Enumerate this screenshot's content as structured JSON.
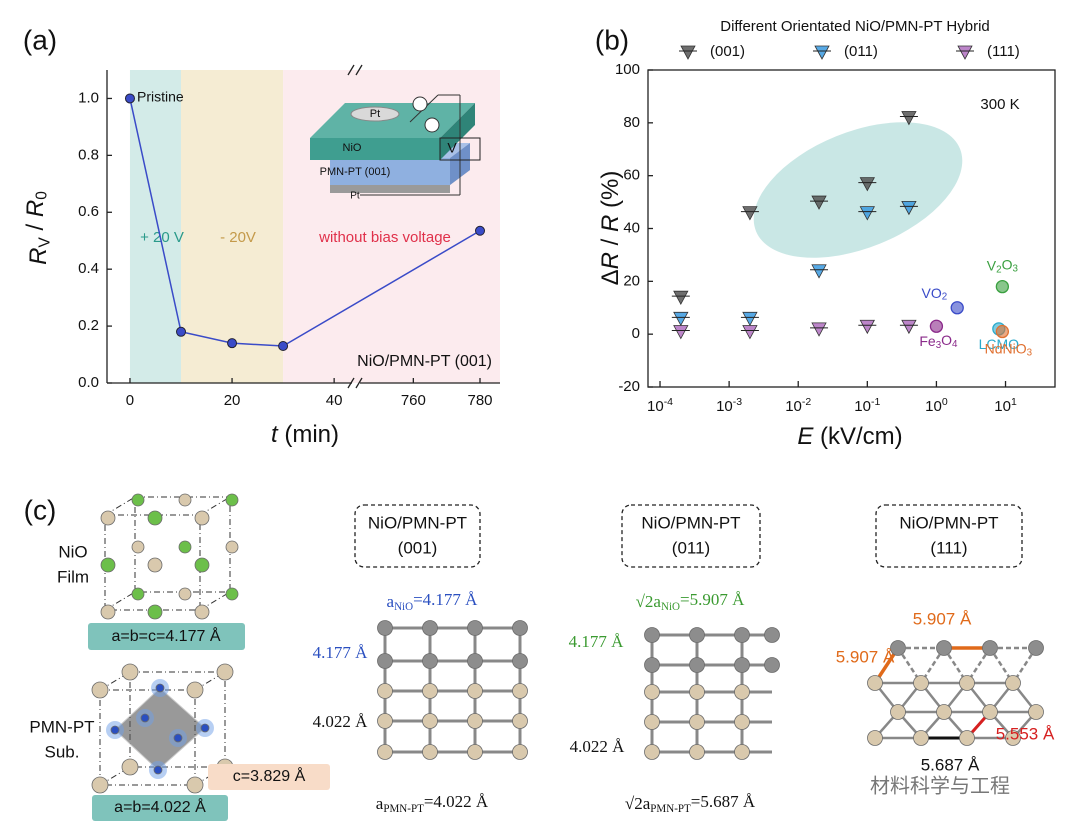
{
  "panels": [
    "(a)",
    "(b)",
    "(c)"
  ],
  "chart_data": [
    {
      "type": "line",
      "x_label": [
        {
          "it": "t"
        },
        " (min)"
      ],
      "y_label": [
        {
          "it": "R"
        },
        {
          "sub": "V"
        },
        " / ",
        {
          "it": "R"
        },
        {
          "sub": "0"
        }
      ],
      "x": [
        0,
        10,
        20,
        30,
        780
      ],
      "values": [
        1.0,
        0.18,
        0.14,
        0.13,
        0.535
      ],
      "color": "#3a4bc8",
      "xlim": [
        -4.5,
        786
      ],
      "xbreak": [
        43.5,
        744
      ],
      "xticks": [
        0,
        20,
        40,
        760,
        780
      ],
      "ylim": [
        0,
        1.1
      ],
      "yticks": [
        {
          "value": 0,
          "label": "0.0"
        },
        0.2,
        0.4,
        0.6,
        0.8,
        {
          "value": 1,
          "label": "1.0"
        }
      ],
      "regions": [
        {
          "x": [
            0,
            10
          ],
          "label": "+ 20 V",
          "color": "#d3ebe8",
          "label_color": "#2a9a8a"
        },
        {
          "x": [
            10,
            30
          ],
          "label": "- 20V",
          "color": "#f5ecd3",
          "label_color": "#c49a4a"
        },
        {
          "x": [
            30,
            786
          ],
          "label": "without bias voltage",
          "color": "#fcebee",
          "label_color": "#e0304a"
        }
      ],
      "annotations": [
        "Pristine",
        "NiO/PMN-PT (001)"
      ],
      "inset_labels": [
        "Pt",
        "NiO",
        "PMN-PT (001)",
        "Pt",
        "V"
      ]
    },
    {
      "type": "scatter",
      "legend_title": "Different Orientated NiO/PMN-PT Hybrid",
      "x_label": [
        {
          "it": "E"
        },
        " (kV/cm)"
      ],
      "y_label": [
        "Δ",
        {
          "it": "R"
        },
        " / ",
        {
          "it": "R"
        },
        " (%)"
      ],
      "log_x": true,
      "xlim": [
        6.7e-05,
        52
      ],
      "xticks": [
        {
          "value": 0.0001,
          "label": "10-4"
        },
        {
          "value": 0.001,
          "label": "10-3"
        },
        {
          "value": 0.01,
          "label": "10-2"
        },
        {
          "value": 0.1,
          "label": "10-1"
        },
        {
          "value": 1,
          "label": "100"
        },
        {
          "value": 10,
          "label": "101"
        }
      ],
      "ylim": [
        -20,
        100
      ],
      "yticks": [
        -20,
        0,
        20,
        40,
        60,
        80,
        100
      ],
      "annotation": "300 K",
      "series": [
        {
          "name": "(001)",
          "color": "#555555",
          "x": [
            0.0002,
            0.002,
            0.02,
            0.1,
            0.4
          ],
          "values": [
            14,
            46,
            50,
            57,
            82
          ]
        },
        {
          "name": "(011)",
          "color": "#3a9ae0",
          "x": [
            0.0002,
            0.002,
            0.02,
            0.1,
            0.4
          ],
          "values": [
            6,
            6,
            24,
            46,
            48
          ]
        },
        {
          "name": "(111)",
          "color": "#b070c0",
          "x": [
            0.0002,
            0.002,
            0.02,
            0.1,
            0.4
          ],
          "values": [
            1,
            1,
            2,
            3,
            3
          ]
        }
      ],
      "points": [
        {
          "name": "VO2",
          "x": 2,
          "y": 10,
          "color": "#3a4bc8"
        },
        {
          "name": "Fe3O4",
          "x": 1,
          "y": 3,
          "color": "#8a2a8a"
        },
        {
          "name": "V2O3",
          "x": 9,
          "y": 18,
          "color": "#3aa040"
        },
        {
          "name": "LCMO",
          "x": 8,
          "y": 2,
          "color": "#2aaacc"
        },
        {
          "name": "NdNiO3",
          "x": 9,
          "y": 1,
          "color": "#e07030"
        }
      ]
    }
  ],
  "panel_c": {
    "nio_film": [
      "NiO",
      "Film"
    ],
    "nio_lattice": "a=b=c=4.177 Å",
    "pmn_sub": [
      "PMN-PT",
      "Sub."
    ],
    "pmn_c": "c=3.829 Å",
    "pmn_lattice": "a=b=4.022 Å",
    "columns": [
      {
        "title": [
          "NiO/PMN-PT",
          "(001)"
        ],
        "labels": [
          [
            "a",
            {
              "sub": "NiO"
            },
            "=4.177 Å"
          ],
          "4.177 Å",
          "4.022 Å",
          [
            "a",
            {
              "sub": "PMN-PT"
            },
            "=4.022 Å"
          ]
        ]
      },
      {
        "title": [
          "NiO/PMN-PT",
          "(011)"
        ],
        "labels": [
          [
            "√2a",
            {
              "sub": "NiO"
            },
            "=5.907 Å"
          ],
          "4.177 Å",
          "4.022 Å",
          [
            "√2a",
            {
              "sub": "PMN-PT"
            },
            "=5.687 Å"
          ]
        ]
      },
      {
        "title": [
          "NiO/PMN-PT",
          "(111)"
        ],
        "labels": [
          "5.907 Å",
          "5.907 Å",
          "5.553 Å",
          "5.687 Å"
        ]
      }
    ]
  },
  "watermark": "材料科学与工程"
}
